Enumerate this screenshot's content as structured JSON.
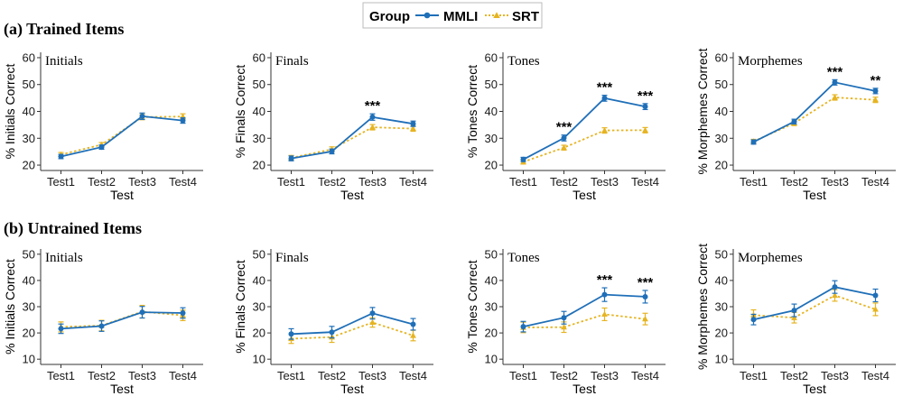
{
  "legend": {
    "title": "Group",
    "items": [
      {
        "label": "MMLI",
        "color": "#1f6fb8",
        "dash": "solid",
        "marker": "circle"
      },
      {
        "label": "SRT",
        "color": "#e6b422",
        "dash": "dotted",
        "marker": "triangle"
      }
    ]
  },
  "sections": [
    {
      "title": "(a) Trained Items"
    },
    {
      "title": "(b) Untrained Items"
    }
  ],
  "chart_data": [
    {
      "type": "line",
      "section": 0,
      "title": "Initials",
      "xlabel": "Test",
      "ylabel": "% Initials Correct",
      "categories": [
        "Test1",
        "Test2",
        "Test3",
        "Test4"
      ],
      "ylim": [
        18,
        62
      ],
      "yticks": [
        20,
        30,
        40,
        50,
        60
      ],
      "series": [
        {
          "name": "MMLI",
          "values": [
            23.2,
            26.7,
            38.2,
            36.6
          ],
          "errors": [
            0.8,
            0.8,
            1.2,
            1.0
          ]
        },
        {
          "name": "SRT",
          "values": [
            23.9,
            27.6,
            37.9,
            38.1
          ],
          "errors": [
            0.8,
            0.8,
            1.0,
            1.0
          ]
        }
      ],
      "significance": [
        "",
        "",
        "",
        ""
      ]
    },
    {
      "type": "line",
      "section": 0,
      "title": "Finals",
      "xlabel": "Test",
      "ylabel": "% Finals Correct",
      "categories": [
        "Test1",
        "Test2",
        "Test3",
        "Test4"
      ],
      "ylim": [
        18,
        62
      ],
      "yticks": [
        20,
        30,
        40,
        50,
        60
      ],
      "series": [
        {
          "name": "MMLI",
          "values": [
            22.5,
            25.1,
            37.9,
            35.4
          ],
          "errors": [
            0.9,
            0.9,
            1.2,
            1.0
          ]
        },
        {
          "name": "SRT",
          "values": [
            22.7,
            25.9,
            34.1,
            33.6
          ],
          "errors": [
            0.9,
            0.9,
            1.0,
            1.0
          ]
        }
      ],
      "significance": [
        "",
        "",
        "***",
        ""
      ]
    },
    {
      "type": "line",
      "section": 0,
      "title": "Tones",
      "xlabel": "Test",
      "ylabel": "% Tones Correct",
      "categories": [
        "Test1",
        "Test2",
        "Test3",
        "Test4"
      ],
      "ylim": [
        18,
        62
      ],
      "yticks": [
        20,
        30,
        40,
        50,
        60
      ],
      "series": [
        {
          "name": "MMLI",
          "values": [
            22.1,
            30.1,
            44.9,
            41.8
          ],
          "errors": [
            0.8,
            1.1,
            1.1,
            1.1
          ]
        },
        {
          "name": "SRT",
          "values": [
            21.2,
            26.5,
            32.9,
            33.0
          ],
          "errors": [
            0.8,
            0.9,
            1.0,
            1.0
          ]
        }
      ],
      "significance": [
        "",
        "***",
        "***",
        "***"
      ]
    },
    {
      "type": "line",
      "section": 0,
      "title": "Morphemes",
      "xlabel": "Test",
      "ylabel": "% Morphemes Correct",
      "categories": [
        "Test1",
        "Test2",
        "Test3",
        "Test4"
      ],
      "ylim": [
        18,
        62
      ],
      "yticks": [
        20,
        30,
        40,
        50,
        60
      ],
      "series": [
        {
          "name": "MMLI",
          "values": [
            28.6,
            36.2,
            50.8,
            47.6
          ],
          "errors": [
            0.8,
            0.9,
            1.0,
            1.0
          ]
        },
        {
          "name": "SRT",
          "values": [
            28.8,
            35.6,
            45.2,
            44.3
          ],
          "errors": [
            0.8,
            0.9,
            1.0,
            1.0
          ]
        }
      ],
      "significance": [
        "",
        "",
        "***",
        "**"
      ]
    },
    {
      "type": "line",
      "section": 1,
      "title": "Initials",
      "xlabel": "Test",
      "ylabel": "% Initials Correct",
      "categories": [
        "Test1",
        "Test2",
        "Test3",
        "Test4"
      ],
      "ylim": [
        8,
        52
      ],
      "yticks": [
        10,
        20,
        30,
        40,
        50
      ],
      "series": [
        {
          "name": "MMLI",
          "values": [
            21.6,
            22.6,
            27.9,
            27.6
          ],
          "errors": [
            1.8,
            2.0,
            2.2,
            2.0
          ]
        },
        {
          "name": "SRT",
          "values": [
            22.3,
            22.8,
            28.1,
            26.7
          ],
          "errors": [
            1.9,
            2.0,
            2.4,
            2.0
          ]
        }
      ],
      "significance": [
        "",
        "",
        "",
        ""
      ]
    },
    {
      "type": "line",
      "section": 1,
      "title": "Finals",
      "xlabel": "Test",
      "ylabel": "% Finals Correct",
      "categories": [
        "Test1",
        "Test2",
        "Test3",
        "Test4"
      ],
      "ylim": [
        8,
        52
      ],
      "yticks": [
        10,
        20,
        30,
        40,
        50
      ],
      "series": [
        {
          "name": "MMLI",
          "values": [
            19.6,
            20.3,
            27.5,
            23.3
          ],
          "errors": [
            2.0,
            2.2,
            2.2,
            2.2
          ]
        },
        {
          "name": "SRT",
          "values": [
            17.8,
            18.4,
            24.0,
            19.0
          ],
          "errors": [
            1.8,
            2.0,
            1.8,
            2.0
          ]
        }
      ],
      "significance": [
        "",
        "",
        "",
        ""
      ]
    },
    {
      "type": "line",
      "section": 1,
      "title": "Tones",
      "xlabel": "Test",
      "ylabel": "% Tones Correct",
      "categories": [
        "Test1",
        "Test2",
        "Test3",
        "Test4"
      ],
      "ylim": [
        8,
        52
      ],
      "yticks": [
        10,
        20,
        30,
        40,
        50
      ],
      "series": [
        {
          "name": "MMLI",
          "values": [
            22.4,
            25.8,
            34.6,
            33.8
          ],
          "errors": [
            2.0,
            2.4,
            2.6,
            2.4
          ]
        },
        {
          "name": "SRT",
          "values": [
            22.1,
            22.2,
            27.1,
            25.3
          ],
          "errors": [
            2.0,
            2.0,
            2.4,
            2.2
          ]
        }
      ],
      "significance": [
        "",
        "",
        "***",
        "***"
      ]
    },
    {
      "type": "line",
      "section": 1,
      "title": "Morphemes",
      "xlabel": "Test",
      "ylabel": "% Morphemes Correct",
      "categories": [
        "Test1",
        "Test2",
        "Test3",
        "Test4"
      ],
      "ylim": [
        8,
        52
      ],
      "yticks": [
        10,
        20,
        30,
        40,
        50
      ],
      "series": [
        {
          "name": "MMLI",
          "values": [
            25.1,
            28.6,
            37.5,
            34.3
          ],
          "errors": [
            2.0,
            2.4,
            2.4,
            2.4
          ]
        },
        {
          "name": "SRT",
          "values": [
            26.8,
            25.8,
            34.3,
            29.0
          ],
          "errors": [
            2.0,
            2.0,
            2.2,
            2.4
          ]
        }
      ],
      "significance": [
        "",
        "",
        "",
        ""
      ]
    }
  ]
}
